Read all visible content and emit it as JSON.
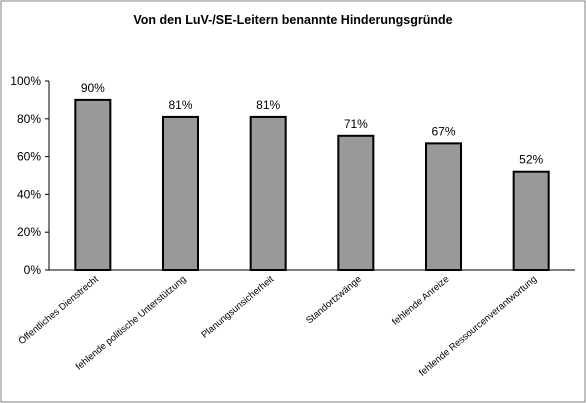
{
  "chart_data": {
    "type": "bar",
    "title": "Von den LuV-/SE-Leitern benannte Hinderungsgründe",
    "categories": [
      "Öffentliches Dienstrecht",
      "fehlende politische Unterstützung",
      "Planungsunsicherheit",
      "Standortzwänge",
      "fehlende Anreize",
      "fehlende Ressourcenverantwortung"
    ],
    "values": [
      90,
      81,
      81,
      71,
      67,
      52
    ],
    "data_labels": [
      "90%",
      "81%",
      "81%",
      "71%",
      "67%",
      "52%"
    ],
    "ylim": [
      0,
      100
    ],
    "yticks": [
      0,
      20,
      40,
      60,
      80,
      100
    ],
    "ytick_labels": [
      "0%",
      "20%",
      "40%",
      "60%",
      "80%",
      "100%"
    ],
    "xlabel": "",
    "ylabel": "",
    "grid": false,
    "legend": "none",
    "colors": {
      "bar_fill": "#999999",
      "bar_stroke": "#000000",
      "frame": "#808080",
      "background": "#ffffff"
    }
  }
}
